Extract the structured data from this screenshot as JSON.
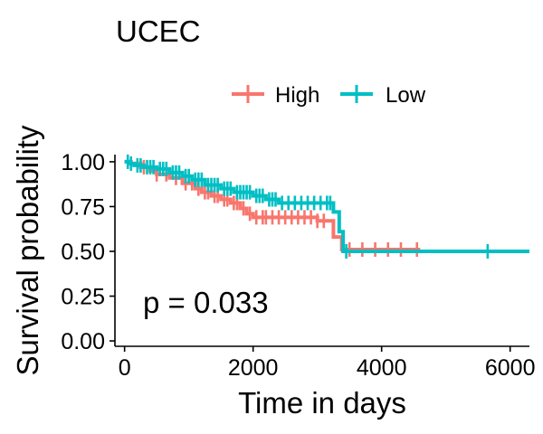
{
  "chart_data": {
    "type": "line",
    "subtype": "kaplan-meier",
    "title": "UCEC",
    "xlabel": "Time in days",
    "ylabel": "Survival probability",
    "xlim": [
      -150,
      6300
    ],
    "ylim": [
      -0.03,
      1.04
    ],
    "x_ticks": [
      0,
      2000,
      4000,
      6000
    ],
    "x_tick_labels": [
      "0",
      "2000",
      "4000",
      "6000"
    ],
    "y_ticks": [
      0,
      0.25,
      0.5,
      0.75,
      1
    ],
    "y_tick_labels": [
      "0.00",
      "0.25",
      "0.50",
      "0.75",
      "1.00"
    ],
    "grid": false,
    "legend_position": "top",
    "annotation": "p = 0.033",
    "series": [
      {
        "name": "High",
        "color": "#F8766D",
        "steps": [
          [
            0,
            1.0
          ],
          [
            100,
            0.99
          ],
          [
            250,
            0.97
          ],
          [
            400,
            0.95
          ],
          [
            500,
            0.93
          ],
          [
            700,
            0.91
          ],
          [
            900,
            0.88
          ],
          [
            1100,
            0.85
          ],
          [
            1200,
            0.83
          ],
          [
            1350,
            0.81
          ],
          [
            1500,
            0.79
          ],
          [
            1650,
            0.77
          ],
          [
            1800,
            0.74
          ],
          [
            1900,
            0.71
          ],
          [
            2000,
            0.69
          ],
          [
            3000,
            0.67
          ],
          [
            3250,
            0.58
          ],
          [
            3380,
            0.51
          ],
          [
            4600,
            0.51
          ]
        ],
        "censor_times": [
          300,
          500,
          650,
          800,
          950,
          1050,
          1150,
          1250,
          1300,
          1400,
          1450,
          1550,
          1600,
          1700,
          1750,
          1850,
          1950,
          2050,
          2150,
          2200,
          2300,
          2400,
          2500,
          2600,
          2700,
          2800,
          2900,
          3000,
          3100,
          3500,
          3700,
          3900,
          4100,
          4300,
          4550
        ]
      },
      {
        "name": "Low",
        "color": "#00BFC4",
        "steps": [
          [
            0,
            1.0
          ],
          [
            80,
            0.99
          ],
          [
            150,
            0.98
          ],
          [
            300,
            0.97
          ],
          [
            500,
            0.96
          ],
          [
            700,
            0.94
          ],
          [
            900,
            0.92
          ],
          [
            1050,
            0.9
          ],
          [
            1250,
            0.87
          ],
          [
            1500,
            0.85
          ],
          [
            1700,
            0.83
          ],
          [
            2000,
            0.81
          ],
          [
            2200,
            0.79
          ],
          [
            2400,
            0.77
          ],
          [
            3250,
            0.72
          ],
          [
            3340,
            0.61
          ],
          [
            3400,
            0.5
          ],
          [
            6300,
            0.5
          ]
        ],
        "censor_times": [
          50,
          100,
          200,
          250,
          350,
          400,
          450,
          550,
          600,
          650,
          750,
          800,
          850,
          950,
          1000,
          1100,
          1150,
          1200,
          1300,
          1350,
          1400,
          1450,
          1550,
          1600,
          1650,
          1750,
          1800,
          1850,
          1900,
          1950,
          2050,
          2100,
          2150,
          2250,
          2300,
          2350,
          2450,
          2550,
          2650,
          2750,
          2850,
          2950,
          3050,
          3150,
          3200,
          3450,
          5650
        ]
      }
    ]
  }
}
